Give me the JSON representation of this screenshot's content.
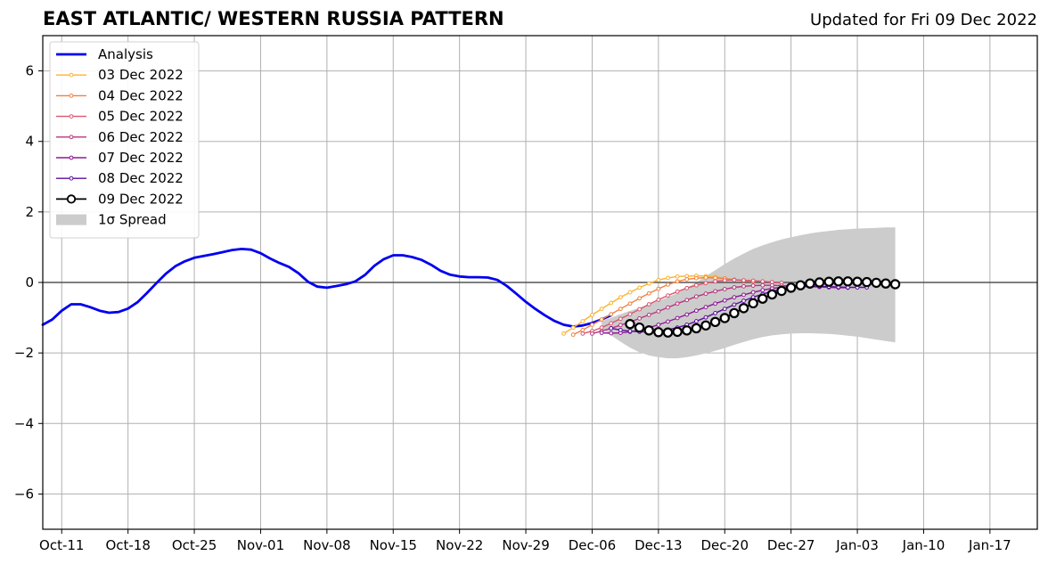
{
  "title": "EAST ATLANTIC/ WESTERN RUSSIA PATTERN",
  "subtitle": "Updated for Fri 09 Dec 2022",
  "chart_data": {
    "type": "line",
    "x_axis": {
      "type": "date",
      "range": [
        "2022-10-09",
        "2023-01-22"
      ],
      "ticks": [
        "2022-10-11",
        "2022-10-18",
        "2022-10-25",
        "2022-11-01",
        "2022-11-08",
        "2022-11-15",
        "2022-11-22",
        "2022-11-29",
        "2022-12-06",
        "2022-12-13",
        "2022-12-20",
        "2022-12-27",
        "2023-01-03",
        "2023-01-10",
        "2023-01-17"
      ],
      "tick_labels": [
        "Oct-11",
        "Oct-18",
        "Oct-25",
        "Nov-01",
        "Nov-08",
        "Nov-15",
        "Nov-22",
        "Nov-29",
        "Dec-06",
        "Dec-13",
        "Dec-20",
        "Dec-27",
        "Jan-03",
        "Jan-10",
        "Jan-17"
      ]
    },
    "y_axis": {
      "range": [
        -7,
        7
      ],
      "ticks": [
        -6,
        -4,
        -2,
        0,
        2,
        4,
        6
      ],
      "tick_labels": [
        "−6",
        "−4",
        "−2",
        "0",
        "2",
        "4",
        "6"
      ]
    },
    "grid": true,
    "legend_position": "top-left",
    "analysis": {
      "name": "Analysis",
      "color": "#0000ee",
      "points": [
        [
          "2022-10-09",
          -1.2
        ],
        [
          "2022-10-10",
          -1.05
        ],
        [
          "2022-10-11",
          -0.8
        ],
        [
          "2022-10-12",
          -0.62
        ],
        [
          "2022-10-13",
          -0.62
        ],
        [
          "2022-10-14",
          -0.7
        ],
        [
          "2022-10-15",
          -0.8
        ],
        [
          "2022-10-16",
          -0.86
        ],
        [
          "2022-10-17",
          -0.84
        ],
        [
          "2022-10-18",
          -0.74
        ],
        [
          "2022-10-19",
          -0.56
        ],
        [
          "2022-10-20",
          -0.3
        ],
        [
          "2022-10-21",
          -0.02
        ],
        [
          "2022-10-22",
          0.25
        ],
        [
          "2022-10-23",
          0.46
        ],
        [
          "2022-10-24",
          0.6
        ],
        [
          "2022-10-25",
          0.7
        ],
        [
          "2022-10-26",
          0.75
        ],
        [
          "2022-10-27",
          0.8
        ],
        [
          "2022-10-28",
          0.86
        ],
        [
          "2022-10-29",
          0.92
        ],
        [
          "2022-10-30",
          0.95
        ],
        [
          "2022-10-31",
          0.93
        ],
        [
          "2022-11-01",
          0.83
        ],
        [
          "2022-11-02",
          0.68
        ],
        [
          "2022-11-03",
          0.55
        ],
        [
          "2022-11-04",
          0.44
        ],
        [
          "2022-11-05",
          0.26
        ],
        [
          "2022-11-06",
          0.02
        ],
        [
          "2022-11-07",
          -0.12
        ],
        [
          "2022-11-08",
          -0.15
        ],
        [
          "2022-11-09",
          -0.1
        ],
        [
          "2022-11-10",
          -0.05
        ],
        [
          "2022-11-11",
          0.03
        ],
        [
          "2022-11-12",
          0.21
        ],
        [
          "2022-11-13",
          0.47
        ],
        [
          "2022-11-14",
          0.66
        ],
        [
          "2022-11-15",
          0.77
        ],
        [
          "2022-11-16",
          0.77
        ],
        [
          "2022-11-17",
          0.72
        ],
        [
          "2022-11-18",
          0.64
        ],
        [
          "2022-11-19",
          0.5
        ],
        [
          "2022-11-20",
          0.33
        ],
        [
          "2022-11-21",
          0.22
        ],
        [
          "2022-11-22",
          0.17
        ],
        [
          "2022-11-23",
          0.15
        ],
        [
          "2022-11-24",
          0.15
        ],
        [
          "2022-11-25",
          0.14
        ],
        [
          "2022-11-26",
          0.07
        ],
        [
          "2022-11-27",
          -0.1
        ],
        [
          "2022-11-28",
          -0.32
        ],
        [
          "2022-11-29",
          -0.55
        ],
        [
          "2022-11-30",
          -0.75
        ],
        [
          "2022-12-01",
          -0.93
        ],
        [
          "2022-12-02",
          -1.09
        ],
        [
          "2022-12-03",
          -1.2
        ],
        [
          "2022-12-04",
          -1.25
        ],
        [
          "2022-12-05",
          -1.22
        ],
        [
          "2022-12-06",
          -1.15
        ],
        [
          "2022-12-07",
          -1.05
        ],
        [
          "2022-12-08",
          -0.93
        ]
      ]
    },
    "forecasts": [
      {
        "name": "03 Dec 2022",
        "color": "#fcb22f",
        "start": "2022-12-03",
        "values": [
          -1.45,
          -1.28,
          -1.1,
          -0.92,
          -0.75,
          -0.58,
          -0.42,
          -0.28,
          -0.15,
          -0.03,
          0.07,
          0.13,
          0.17,
          0.18,
          0.19,
          0.18,
          0.16,
          0.12
        ]
      },
      {
        "name": "04 Dec 2022",
        "color": "#f0813f",
        "start": "2022-12-04",
        "values": [
          -1.48,
          -1.35,
          -1.2,
          -1.05,
          -0.9,
          -0.75,
          -0.6,
          -0.45,
          -0.31,
          -0.18,
          -0.06,
          0.03,
          0.09,
          0.12,
          0.14,
          0.13,
          0.11,
          0.08,
          0.05,
          0.02
        ]
      },
      {
        "name": "05 Dec 2022",
        "color": "#d9566f",
        "start": "2022-12-05",
        "values": [
          -1.45,
          -1.38,
          -1.28,
          -1.16,
          -1.03,
          -0.9,
          -0.76,
          -0.62,
          -0.49,
          -0.37,
          -0.26,
          -0.16,
          -0.08,
          -0.02,
          0.03,
          0.06,
          0.07,
          0.06,
          0.05,
          0.03,
          0.01,
          -0.01
        ]
      },
      {
        "name": "06 Dec 2022",
        "color": "#b5367e",
        "start": "2022-12-06",
        "values": [
          -1.45,
          -1.38,
          -1.3,
          -1.21,
          -1.12,
          -1.02,
          -0.92,
          -0.82,
          -0.71,
          -0.6,
          -0.5,
          -0.4,
          -0.32,
          -0.25,
          -0.19,
          -0.14,
          -0.11,
          -0.09,
          -0.08,
          -0.08,
          -0.09,
          -0.1,
          -0.1,
          -0.1,
          -0.1
        ]
      },
      {
        "name": "07 Dec 2022",
        "color": "#8d1894",
        "start": "2022-12-07",
        "values": [
          -1.43,
          -1.44,
          -1.43,
          -1.4,
          -1.35,
          -1.28,
          -1.2,
          -1.11,
          -1.01,
          -0.91,
          -0.8,
          -0.7,
          -0.6,
          -0.51,
          -0.42,
          -0.35,
          -0.28,
          -0.22,
          -0.17,
          -0.14,
          -0.12,
          -0.11,
          -0.12,
          -0.13,
          -0.14,
          -0.15,
          -0.15
        ]
      },
      {
        "name": "08 Dec 2022",
        "color": "#5b0c9c",
        "start": "2022-12-08",
        "values": [
          -1.3,
          -1.35,
          -1.38,
          -1.4,
          -1.4,
          -1.38,
          -1.34,
          -1.28,
          -1.2,
          -1.1,
          -0.99,
          -0.87,
          -0.75,
          -0.63,
          -0.52,
          -0.42,
          -0.33,
          -0.25,
          -0.19,
          -0.15,
          -0.12,
          -0.11,
          -0.11,
          -0.12,
          -0.13,
          -0.14,
          -0.14,
          -0.14
        ]
      },
      {
        "name": "09 Dec 2022",
        "color": "#000000",
        "start": "2022-12-10",
        "values": [
          -1.18,
          -1.28,
          -1.36,
          -1.41,
          -1.42,
          -1.4,
          -1.36,
          -1.3,
          -1.22,
          -1.12,
          -1.01,
          -0.87,
          -0.73,
          -0.59,
          -0.46,
          -0.34,
          -0.24,
          -0.15,
          -0.08,
          -0.03,
          0.0,
          0.02,
          0.03,
          0.03,
          0.02,
          0.01,
          -0.01,
          -0.03,
          -0.05
        ]
      }
    ],
    "spread": {
      "label": "1σ Spread",
      "color": "#cccccc",
      "start": "2022-12-07",
      "upper": [
        -1.1,
        -1.0,
        -0.9,
        -0.8,
        -0.72,
        -0.62,
        -0.52,
        -0.42,
        -0.3,
        -0.15,
        0.0,
        0.18,
        0.35,
        0.52,
        0.68,
        0.82,
        0.95,
        1.05,
        1.14,
        1.22,
        1.28,
        1.34,
        1.39,
        1.43,
        1.46,
        1.49,
        1.51,
        1.53,
        1.54,
        1.55,
        1.56,
        1.56
      ],
      "lower": [
        -1.3,
        -1.5,
        -1.68,
        -1.85,
        -1.98,
        -2.07,
        -2.12,
        -2.15,
        -2.15,
        -2.12,
        -2.07,
        -2.01,
        -1.94,
        -1.86,
        -1.77,
        -1.69,
        -1.61,
        -1.55,
        -1.5,
        -1.47,
        -1.45,
        -1.44,
        -1.44,
        -1.45,
        -1.46,
        -1.48,
        -1.51,
        -1.54,
        -1.58,
        -1.62,
        -1.66,
        -1.7
      ]
    },
    "legend": [
      {
        "label": "Analysis",
        "style": "thick-line",
        "color": "#0000ee"
      },
      {
        "label": "03 Dec 2022",
        "style": "dot-line",
        "color": "#fcb22f"
      },
      {
        "label": "04 Dec 2022",
        "style": "dot-line",
        "color": "#f0813f"
      },
      {
        "label": "05 Dec 2022",
        "style": "dot-line",
        "color": "#d9566f"
      },
      {
        "label": "06 Dec 2022",
        "style": "dot-line",
        "color": "#b5367e"
      },
      {
        "label": "07 Dec 2022",
        "style": "dot-line",
        "color": "#8d1894"
      },
      {
        "label": "08 Dec 2022",
        "style": "dot-line",
        "color": "#5b0c9c"
      },
      {
        "label": "09 Dec 2022",
        "style": "circle-line",
        "color": "#000000"
      },
      {
        "label": "1σ Spread",
        "style": "patch",
        "color": "#cccccc"
      }
    ]
  }
}
